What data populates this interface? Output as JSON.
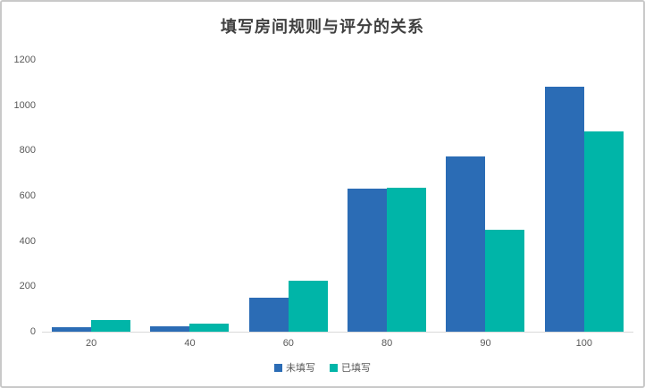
{
  "page": {
    "background": "#ffffff",
    "border_color": "#c9c9c9"
  },
  "chart_data": {
    "type": "bar",
    "title": "填写房间规则与评分的关系",
    "categories": [
      "20",
      "40",
      "60",
      "80",
      "90",
      "100"
    ],
    "series": [
      {
        "name": "未填写",
        "color": "#2b6cb5",
        "values": [
          20,
          25,
          150,
          630,
          775,
          1080
        ]
      },
      {
        "name": "已填写",
        "color": "#00b5a8",
        "values": [
          50,
          35,
          225,
          635,
          450,
          885
        ]
      }
    ],
    "xlabel": "",
    "ylabel": "",
    "ylim": [
      0,
      1200
    ],
    "yticks": [
      0,
      200,
      400,
      600,
      800,
      1000,
      1200
    ],
    "grid": false,
    "legend_position": "bottom",
    "title_color": "#404040",
    "tick_color": "#595959",
    "axis_color": "#d9d9d9"
  }
}
